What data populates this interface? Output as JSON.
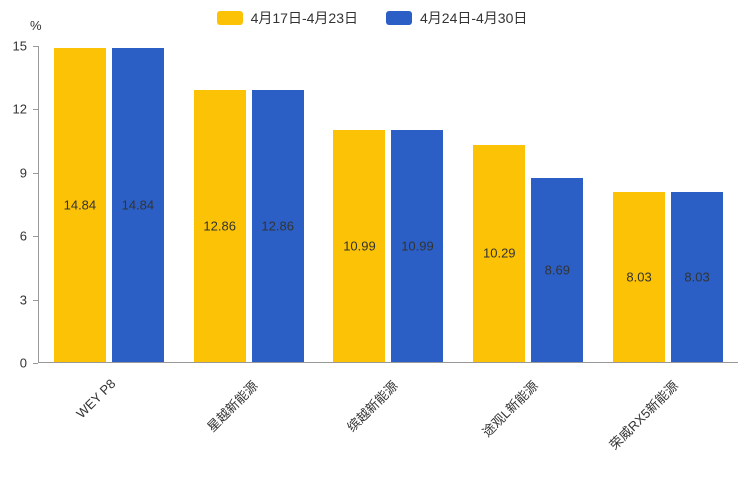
{
  "legend": {
    "items": [
      {
        "label": "4月17日-4月23日",
        "color": "#FCC306"
      },
      {
        "label": "4月24日-4月30日",
        "color": "#2C5FC5"
      }
    ]
  },
  "chart_data": {
    "type": "bar",
    "title": "",
    "categories": [
      "WEY P8",
      "星越新能源",
      "缤越新能源",
      "途观L新能源",
      "荣威RX5新能源"
    ],
    "series": [
      {
        "name": "4月17日-4月23日",
        "color": "#FCC306",
        "values": [
          14.84,
          12.86,
          10.99,
          10.29,
          8.03
        ]
      },
      {
        "name": "4月24日-4月30日",
        "color": "#2C5FC5",
        "values": [
          14.84,
          12.86,
          10.99,
          8.69,
          8.03
        ]
      }
    ],
    "xlabel": "",
    "ylabel": "%",
    "ylim": [
      0,
      15
    ],
    "yticks": [
      0,
      3,
      6,
      9,
      12,
      15
    ],
    "grid": false,
    "legend_position": "top",
    "bar_value_labels": "inside-center",
    "axis_color": "#999999",
    "text_color": "#333333"
  }
}
